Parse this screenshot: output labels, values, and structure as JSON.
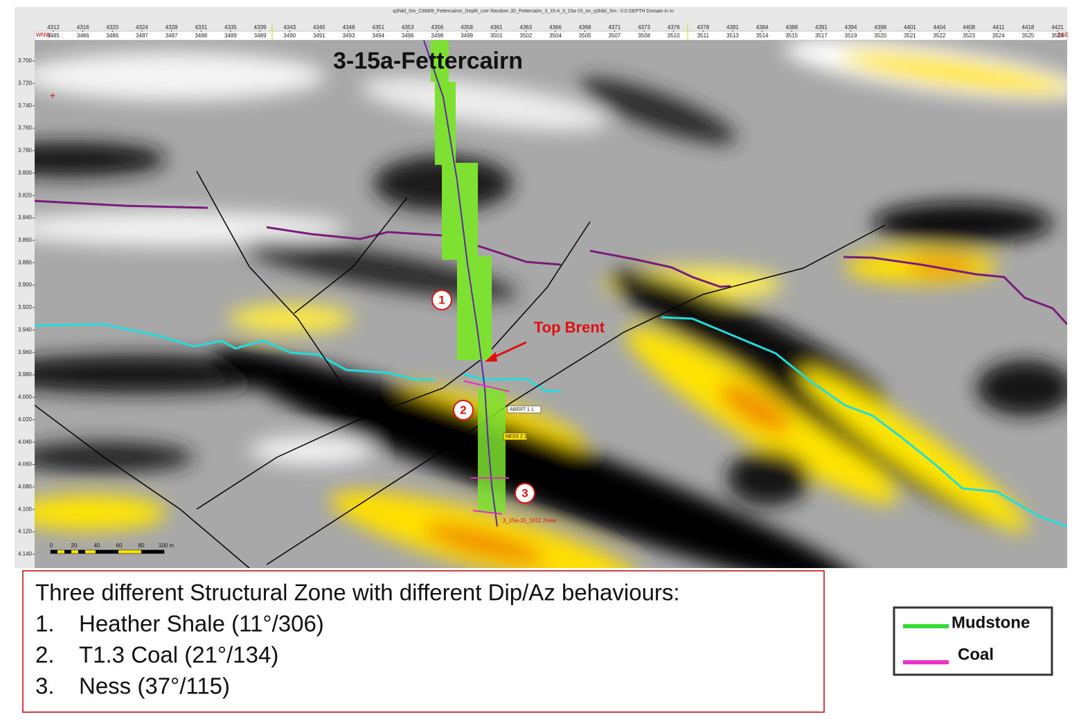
{
  "header": {
    "title": "q3hild_Sm_C8M09_Fettercaimn_Depth_corr    Random JD_Fettercairn_3_15-4_3_15a-15_on_q3hild_Sm : 0.0    DEPTH Domain in m",
    "left_direction": "WNW",
    "right_direction": "ESE"
  },
  "top_axis": {
    "row1": [
      "4312",
      "4316",
      "4320",
      "4324",
      "4328",
      "4331",
      "4335",
      "4339",
      "4343",
      "4345",
      "4348",
      "4351",
      "4353",
      "4356",
      "4358",
      "4361",
      "4363",
      "4366",
      "4368",
      "4371",
      "4373",
      "4376",
      "4378",
      "4381",
      "4384",
      "4388",
      "4391",
      "4394",
      "4398",
      "4401",
      "4404",
      "4408",
      "4411",
      "4418",
      "4421"
    ],
    "row2": [
      "3485",
      "3486",
      "3486",
      "3487",
      "3487",
      "3488",
      "3489",
      "3489",
      "3490",
      "3491",
      "3493",
      "3494",
      "3496",
      "3498",
      "3499",
      "3501",
      "3502",
      "3504",
      "3505",
      "3507",
      "3508",
      "3510",
      "3511",
      "3513",
      "3514",
      "3515",
      "3517",
      "3519",
      "3520",
      "3521",
      "3522",
      "3523",
      "3524",
      "3525",
      "3526"
    ]
  },
  "depth_axis": [
    "3.700",
    "3.720",
    "3.740",
    "3.760",
    "3.780",
    "3.800",
    "3.820",
    "3.840",
    "3.860",
    "3.880",
    "3.900",
    "3.920",
    "3.940",
    "3.960",
    "3.980",
    "4.000",
    "4.020",
    "4.040",
    "4.060",
    "4.080",
    "4.100",
    "4.120",
    "4.140"
  ],
  "well_name": "3-15a-Fettercairn",
  "annotations": {
    "top_brent": "Top Brent",
    "zones": [
      "1",
      "2",
      "3"
    ],
    "markers": [
      "ABERT 1 1",
      "NESS 2 2"
    ],
    "well_label": "3_15a-15_1011 2new"
  },
  "scale_bar": {
    "ticks": [
      "0",
      "20",
      "40",
      "60",
      "80",
      "100 m"
    ]
  },
  "text_box": {
    "heading": "Three different Structural Zone with different Dip/Az behaviours:",
    "items": [
      {
        "number": "1.",
        "text": "Heather Shale (11°/306)"
      },
      {
        "number": "2.",
        "text": "T1.3 Coal (21°/134)"
      },
      {
        "number": "3.",
        "text": "Ness (37°/115)"
      }
    ]
  },
  "legend": [
    {
      "label": "Mudstone",
      "color": "#33dd33"
    },
    {
      "label": "Coal",
      "color": "#ee33cc"
    }
  ]
}
